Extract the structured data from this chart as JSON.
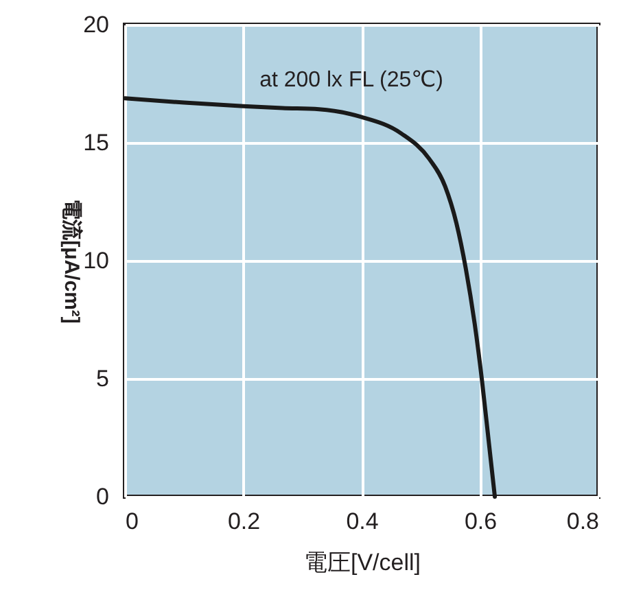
{
  "chart_data": {
    "type": "line",
    "xlabel": "電圧[V/cell]",
    "ylabel": "電流[μA/cm²]",
    "annotations": [
      "at 200 lx FL (25℃)"
    ],
    "xlim": [
      0,
      0.8
    ],
    "xticks": [
      0,
      0.2,
      0.4,
      0.6,
      0.8
    ],
    "ylim": [
      0,
      20
    ],
    "yticks": [
      0,
      5,
      10,
      15,
      20
    ],
    "grid": true,
    "series": [
      {
        "color": "#1a1a1a",
        "x": [
          0,
          0.1,
          0.2,
          0.266,
          0.328,
          0.398,
          0.467,
          0.514,
          0.541,
          0.56,
          0.576,
          0.591,
          0.603,
          0.615,
          0.625
        ],
        "values": [
          16.88,
          16.7,
          16.55,
          16.47,
          16.42,
          16.1,
          15.39,
          14.32,
          13.15,
          11.6,
          9.66,
          7.32,
          4.99,
          2.27,
          0
        ]
      }
    ]
  }
}
